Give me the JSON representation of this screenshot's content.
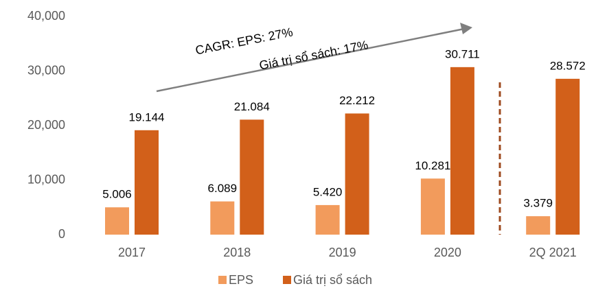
{
  "chart_data": {
    "type": "bar",
    "categories": [
      "2017",
      "2018",
      "2019",
      "2020",
      "2Q 2021"
    ],
    "series": [
      {
        "name": "EPS",
        "color": "#f29b5c",
        "values": [
          5006,
          6089,
          5420,
          10281,
          3379
        ],
        "value_labels": [
          "5.006",
          "6.089",
          "5.420",
          "10.281",
          "3.379"
        ]
      },
      {
        "name": "Giá trị sổ sách",
        "color": "#d2601a",
        "values": [
          19144,
          21084,
          22212,
          30711,
          28572
        ],
        "value_labels": [
          "19.144",
          "21.084",
          "22.212",
          "30.711",
          "28.572"
        ]
      }
    ],
    "ylim": [
      0,
      40000
    ],
    "yticks": [
      0,
      {
        "value": 10000,
        "label": "10,000"
      },
      {
        "value": 20000,
        "label": "20,000"
      },
      {
        "value": 30000,
        "label": "30,000"
      },
      {
        "value": 40000,
        "label": "40,000"
      }
    ],
    "grid": false,
    "legend": "bottom",
    "annotations": [
      "CAGR:  EPS: 27%",
      "Giá trị sổ sách: 17%"
    ]
  }
}
